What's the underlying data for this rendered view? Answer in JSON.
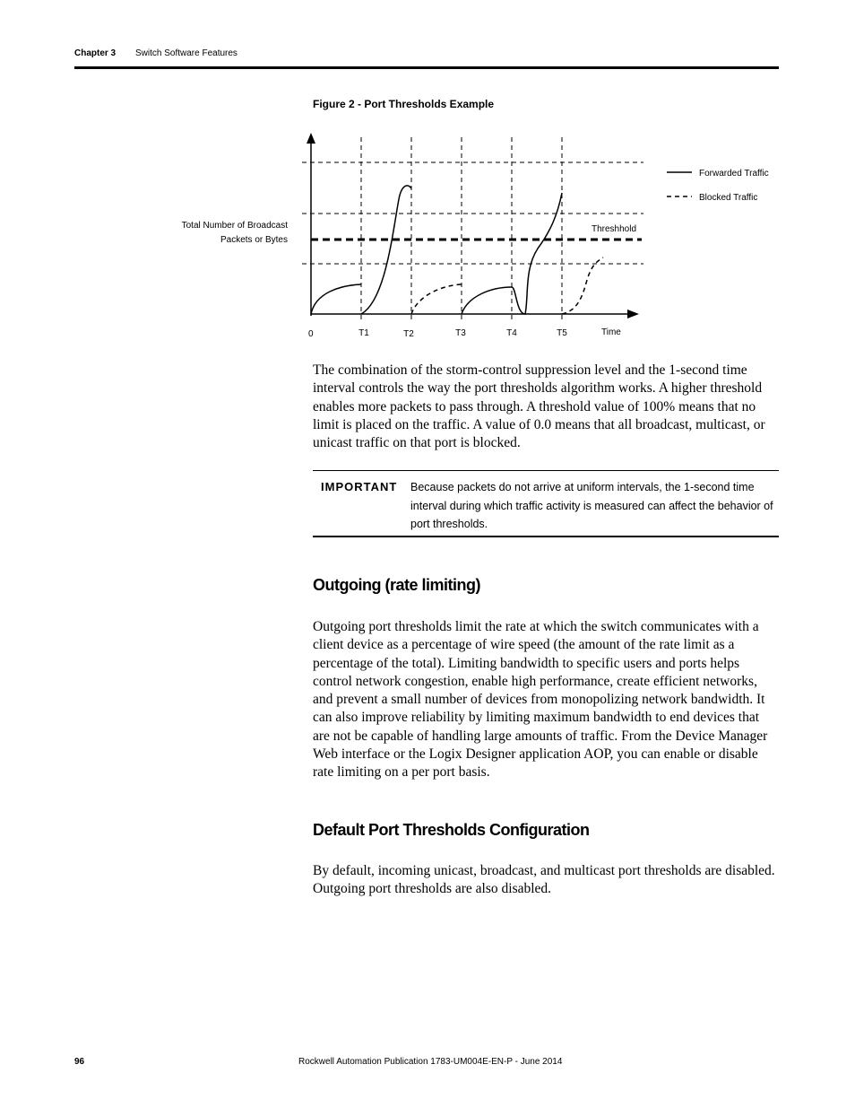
{
  "header": {
    "chapter": "Chapter 3",
    "section": "Switch Software Features"
  },
  "figure": {
    "caption": "Figure 2 - Port Thresholds Example",
    "y_axis_label": [
      "Total Number of Broadcast",
      "Packets or Bytes"
    ],
    "origin": "0",
    "x_ticks": [
      "T1",
      "T2",
      "T3",
      "T4",
      "T5"
    ],
    "x_axis_label": "Time",
    "threshold_label": "Threshhold",
    "legend": [
      "Forwarded Traffic",
      "Blocked Traffic"
    ]
  },
  "intro_paragraph": "The combination of the storm-control suppression level and the 1-second time interval controls the way the port thresholds algorithm works. A higher threshold enables more packets to pass through. A threshold value of 100% means that no limit is placed on the traffic. A value of 0.0 means that all broadcast, multicast, or unicast traffic on that port is blocked.",
  "important": {
    "label": "IMPORTANT",
    "text": "Because packets do not arrive at uniform intervals, the 1-second time interval during which traffic activity is measured can affect the behavior of port thresholds."
  },
  "sections": [
    {
      "heading": "Outgoing (rate limiting)",
      "paragraph": "Outgoing port thresholds limit the rate at which the switch communicates with a client device as a percentage of wire speed (the amount of the rate limit as a percentage of the total). Limiting bandwidth to specific users and ports helps control network congestion, enable high performance, create efficient networks, and prevent a small number of devices from monopolizing network bandwidth. It can also improve reliability by limiting maximum bandwidth to end devices that are not be capable of handling large amounts of traffic. From the Device Manager Web interface or the Logix Designer application AOP, you can enable or disable rate limiting on a per port basis."
    },
    {
      "heading": "Default Port Thresholds Configuration",
      "paragraph": "By default, incoming unicast, broadcast, and multicast port thresholds are disabled. Outgoing port thresholds are also disabled."
    }
  ],
  "footer": {
    "page": "96",
    "publication": "Rockwell Automation Publication 1783-UM004E-EN-P - June 2014"
  }
}
